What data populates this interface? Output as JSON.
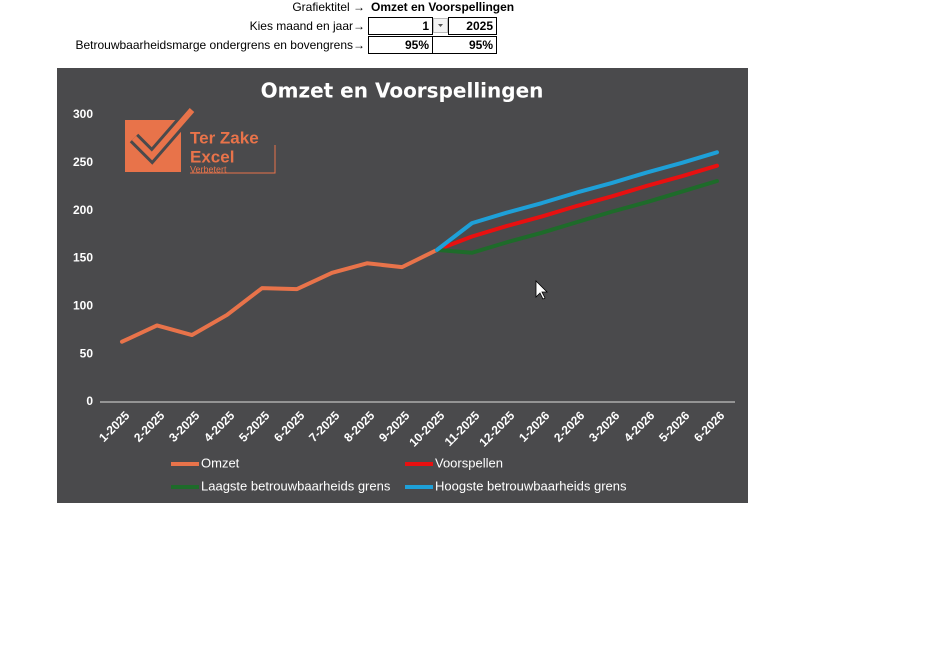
{
  "form": {
    "rows": [
      {
        "label": "Grafiektitel →",
        "values": [
          "Omzet en Voorspellingen"
        ]
      },
      {
        "label": "Kies maand en jaar→",
        "values": [
          "1",
          "2025"
        ]
      },
      {
        "label": "Betrouwbaarheidsmarge ondergrens en bovengrens→",
        "values": [
          "95%",
          "95%"
        ]
      }
    ]
  },
  "logo": {
    "lines": [
      "Ter Zake",
      "Excel",
      "Verbetert"
    ]
  },
  "chart_data": {
    "type": "line",
    "title": "Omzet en Voorspellingen",
    "categories": [
      "1-2025",
      "2-2025",
      "3-2025",
      "4-2025",
      "5-2025",
      "6-2025",
      "7-2025",
      "8-2025",
      "9-2025",
      "10-2025",
      "11-2025",
      "12-2025",
      "1-2026",
      "2-2026",
      "3-2026",
      "4-2026",
      "5-2026",
      "6-2026"
    ],
    "series": [
      {
        "name": "Omzet",
        "color": "#e8734a",
        "values": [
          63,
          80,
          70,
          91,
          119,
          118,
          135,
          145,
          141,
          159,
          null,
          null,
          null,
          null,
          null,
          null,
          null,
          null
        ]
      },
      {
        "name": "Voorspellen",
        "color": "#e81010",
        "values": [
          null,
          null,
          null,
          null,
          null,
          null,
          null,
          null,
          null,
          159,
          173,
          184,
          194,
          205,
          215,
          226,
          236,
          247
        ]
      },
      {
        "name": "Laagste betrouwbaarheids grens",
        "color": "#1e6b2a",
        "values": [
          null,
          null,
          null,
          null,
          null,
          null,
          null,
          null,
          null,
          159,
          156,
          167,
          177,
          188,
          199,
          209,
          220,
          231
        ]
      },
      {
        "name": "Hoogste betrouwbaarheids grens",
        "color": "#1ea0d8",
        "values": [
          null,
          null,
          null,
          null,
          null,
          null,
          null,
          null,
          null,
          159,
          187,
          198,
          208,
          219,
          229,
          240,
          250,
          261
        ]
      }
    ],
    "ylim": [
      0,
      300
    ],
    "yticks": [
      0,
      50,
      100,
      150,
      200,
      250,
      300
    ],
    "grid": false
  }
}
